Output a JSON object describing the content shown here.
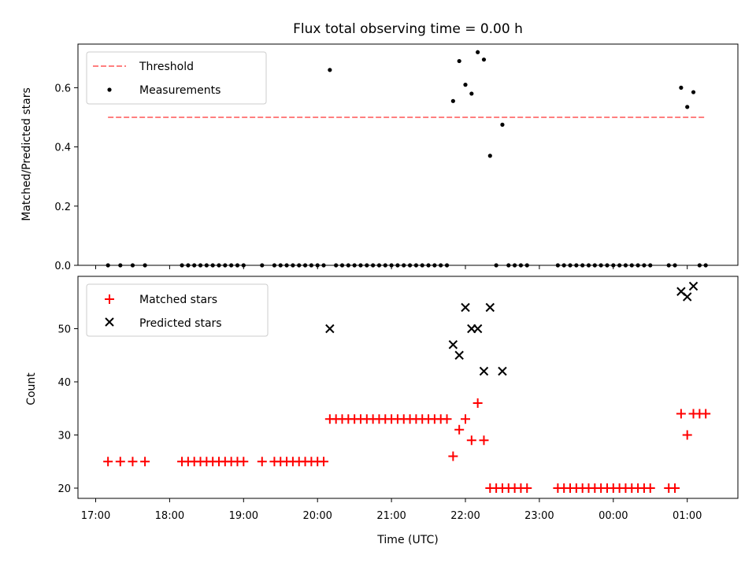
{
  "chart_data": [
    {
      "type": "scatter",
      "title": "Flux total observing time = 0.00 h",
      "xlabel": "",
      "ylabel": "Matched/Predicted stars",
      "ylim": [
        0,
        0.75
      ],
      "yticks": [
        "0.0",
        "0.2",
        "0.4",
        "0.6"
      ],
      "legend_position": "upper-left",
      "threshold": {
        "name": "Threshold",
        "value": 0.5,
        "x_start": "17:10",
        "x_end": "01:15",
        "color": "#ff7f7f"
      },
      "series": [
        {
          "name": "Measurements",
          "color": "#000000",
          "points": [
            [
              "17:10",
              0
            ],
            [
              "17:20",
              0
            ],
            [
              "17:30",
              0
            ],
            [
              "17:40",
              0
            ],
            [
              "18:10",
              0
            ],
            [
              "18:15",
              0
            ],
            [
              "18:20",
              0
            ],
            [
              "18:25",
              0
            ],
            [
              "18:30",
              0
            ],
            [
              "18:35",
              0
            ],
            [
              "18:40",
              0
            ],
            [
              "18:45",
              0
            ],
            [
              "18:50",
              0
            ],
            [
              "18:55",
              0
            ],
            [
              "19:00",
              0
            ],
            [
              "19:15",
              0
            ],
            [
              "19:25",
              0
            ],
            [
              "19:30",
              0
            ],
            [
              "19:35",
              0
            ],
            [
              "19:40",
              0
            ],
            [
              "19:45",
              0
            ],
            [
              "19:50",
              0
            ],
            [
              "19:55",
              0
            ],
            [
              "20:00",
              0
            ],
            [
              "20:05",
              0
            ],
            [
              "20:10",
              0.66
            ],
            [
              "20:15",
              0
            ],
            [
              "20:20",
              0
            ],
            [
              "20:25",
              0
            ],
            [
              "20:30",
              0
            ],
            [
              "20:35",
              0
            ],
            [
              "20:40",
              0
            ],
            [
              "20:45",
              0
            ],
            [
              "20:50",
              0
            ],
            [
              "20:55",
              0
            ],
            [
              "21:00",
              0
            ],
            [
              "21:05",
              0
            ],
            [
              "21:10",
              0
            ],
            [
              "21:15",
              0
            ],
            [
              "21:20",
              0
            ],
            [
              "21:25",
              0
            ],
            [
              "21:30",
              0
            ],
            [
              "21:35",
              0
            ],
            [
              "21:40",
              0
            ],
            [
              "21:45",
              0
            ],
            [
              "21:50",
              0.555
            ],
            [
              "21:55",
              0.69
            ],
            [
              "22:00",
              0.61
            ],
            [
              "22:05",
              0.58
            ],
            [
              "22:10",
              0.72
            ],
            [
              "22:15",
              0.695
            ],
            [
              "22:20",
              0.37
            ],
            [
              "22:25",
              0
            ],
            [
              "22:30",
              0.475
            ],
            [
              "22:35",
              0
            ],
            [
              "22:40",
              0
            ],
            [
              "22:45",
              0
            ],
            [
              "22:50",
              0
            ],
            [
              "23:15",
              0
            ],
            [
              "23:20",
              0
            ],
            [
              "23:25",
              0
            ],
            [
              "23:30",
              0
            ],
            [
              "23:35",
              0
            ],
            [
              "23:40",
              0
            ],
            [
              "23:45",
              0
            ],
            [
              "23:50",
              0
            ],
            [
              "23:55",
              0
            ],
            [
              "00:00",
              0
            ],
            [
              "00:05",
              0
            ],
            [
              "00:10",
              0
            ],
            [
              "00:15",
              0
            ],
            [
              "00:20",
              0
            ],
            [
              "00:25",
              0
            ],
            [
              "00:30",
              0
            ],
            [
              "00:45",
              0
            ],
            [
              "00:50",
              0
            ],
            [
              "00:55",
              0.6
            ],
            [
              "01:00",
              0.535
            ],
            [
              "01:05",
              0.585
            ],
            [
              "01:10",
              0
            ],
            [
              "01:15",
              0
            ]
          ]
        }
      ]
    },
    {
      "type": "scatter",
      "title": "",
      "xlabel": "Time (UTC)",
      "ylabel": "Count",
      "ylim": [
        18,
        60
      ],
      "yticks": [
        "20",
        "30",
        "40",
        "50"
      ],
      "xticks": [
        "17:00",
        "18:00",
        "19:00",
        "20:00",
        "21:00",
        "22:00",
        "23:00",
        "00:00",
        "01:00"
      ],
      "legend_position": "upper-left",
      "series": [
        {
          "name": "Matched stars",
          "marker": "plus",
          "color": "#ff0000",
          "points": [
            [
              "17:10",
              25
            ],
            [
              "17:20",
              25
            ],
            [
              "17:30",
              25
            ],
            [
              "17:40",
              25
            ],
            [
              "18:10",
              25
            ],
            [
              "18:15",
              25
            ],
            [
              "18:20",
              25
            ],
            [
              "18:25",
              25
            ],
            [
              "18:30",
              25
            ],
            [
              "18:35",
              25
            ],
            [
              "18:40",
              25
            ],
            [
              "18:45",
              25
            ],
            [
              "18:50",
              25
            ],
            [
              "18:55",
              25
            ],
            [
              "19:00",
              25
            ],
            [
              "19:15",
              25
            ],
            [
              "19:25",
              25
            ],
            [
              "19:30",
              25
            ],
            [
              "19:35",
              25
            ],
            [
              "19:40",
              25
            ],
            [
              "19:45",
              25
            ],
            [
              "19:50",
              25
            ],
            [
              "19:55",
              25
            ],
            [
              "20:00",
              25
            ],
            [
              "20:05",
              25
            ],
            [
              "20:10",
              33
            ],
            [
              "20:15",
              33
            ],
            [
              "20:20",
              33
            ],
            [
              "20:25",
              33
            ],
            [
              "20:30",
              33
            ],
            [
              "20:35",
              33
            ],
            [
              "20:40",
              33
            ],
            [
              "20:45",
              33
            ],
            [
              "20:50",
              33
            ],
            [
              "20:55",
              33
            ],
            [
              "21:00",
              33
            ],
            [
              "21:05",
              33
            ],
            [
              "21:10",
              33
            ],
            [
              "21:15",
              33
            ],
            [
              "21:20",
              33
            ],
            [
              "21:25",
              33
            ],
            [
              "21:30",
              33
            ],
            [
              "21:35",
              33
            ],
            [
              "21:40",
              33
            ],
            [
              "21:45",
              33
            ],
            [
              "21:50",
              26
            ],
            [
              "21:55",
              31
            ],
            [
              "22:00",
              33
            ],
            [
              "22:05",
              29
            ],
            [
              "22:10",
              36
            ],
            [
              "22:15",
              29
            ],
            [
              "22:20",
              20
            ],
            [
              "22:25",
              20
            ],
            [
              "22:30",
              20
            ],
            [
              "22:35",
              20
            ],
            [
              "22:40",
              20
            ],
            [
              "22:45",
              20
            ],
            [
              "22:50",
              20
            ],
            [
              "23:15",
              20
            ],
            [
              "23:20",
              20
            ],
            [
              "23:25",
              20
            ],
            [
              "23:30",
              20
            ],
            [
              "23:35",
              20
            ],
            [
              "23:40",
              20
            ],
            [
              "23:45",
              20
            ],
            [
              "23:50",
              20
            ],
            [
              "23:55",
              20
            ],
            [
              "00:00",
              20
            ],
            [
              "00:05",
              20
            ],
            [
              "00:10",
              20
            ],
            [
              "00:15",
              20
            ],
            [
              "00:20",
              20
            ],
            [
              "00:25",
              20
            ],
            [
              "00:30",
              20
            ],
            [
              "00:45",
              20
            ],
            [
              "00:50",
              20
            ],
            [
              "00:55",
              34
            ],
            [
              "01:00",
              30
            ],
            [
              "01:05",
              34
            ],
            [
              "01:10",
              34
            ],
            [
              "01:15",
              34
            ]
          ]
        },
        {
          "name": "Predicted stars",
          "marker": "x",
          "color": "#000000",
          "points": [
            [
              "20:10",
              50
            ],
            [
              "21:50",
              47
            ],
            [
              "21:55",
              45
            ],
            [
              "22:00",
              54
            ],
            [
              "22:05",
              50
            ],
            [
              "22:10",
              50
            ],
            [
              "22:15",
              42
            ],
            [
              "22:20",
              54
            ],
            [
              "22:30",
              42
            ],
            [
              "00:55",
              57
            ],
            [
              "01:00",
              56
            ],
            [
              "01:05",
              58
            ]
          ]
        }
      ]
    }
  ]
}
